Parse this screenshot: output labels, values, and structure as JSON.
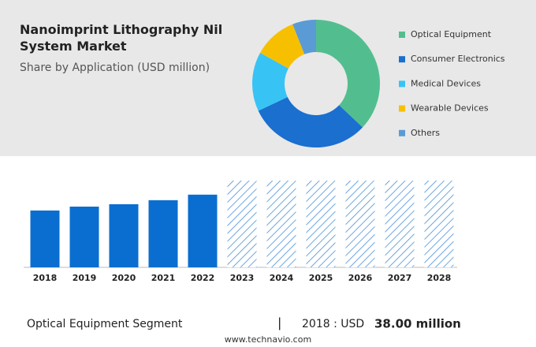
{
  "chart_data": [
    {
      "type": "pie",
      "title": "Nanoimprint Lithography Nil System Market",
      "subtitle": "Share by Application (USD million)",
      "categories": [
        "Optical Equipment",
        "Consumer Electronics",
        "Medical Devices",
        "Wearable Devices",
        "Others"
      ],
      "values": [
        37,
        31,
        15,
        11,
        6
      ],
      "colors": [
        "#52be8f",
        "#1a6fcf",
        "#38c3f5",
        "#f6c000",
        "#5b9bd5"
      ],
      "legend": "right"
    },
    {
      "type": "bar",
      "categories": [
        "2018",
        "2019",
        "2020",
        "2021",
        "2022",
        "2023",
        "2024",
        "2025",
        "2026",
        "2027",
        "2028"
      ],
      "values": [
        38,
        40.6,
        42.2,
        44.9,
        48.6,
        null,
        null,
        null,
        null,
        null,
        null
      ],
      "color": "#0a6ed1",
      "ylim": [
        0,
        58
      ]
    }
  ],
  "footer": {
    "segment": "Optical Equipment Segment",
    "separator": "|",
    "year_label": "2018 : USD",
    "amount": "38.00 million",
    "source": "www.technavio.com"
  }
}
